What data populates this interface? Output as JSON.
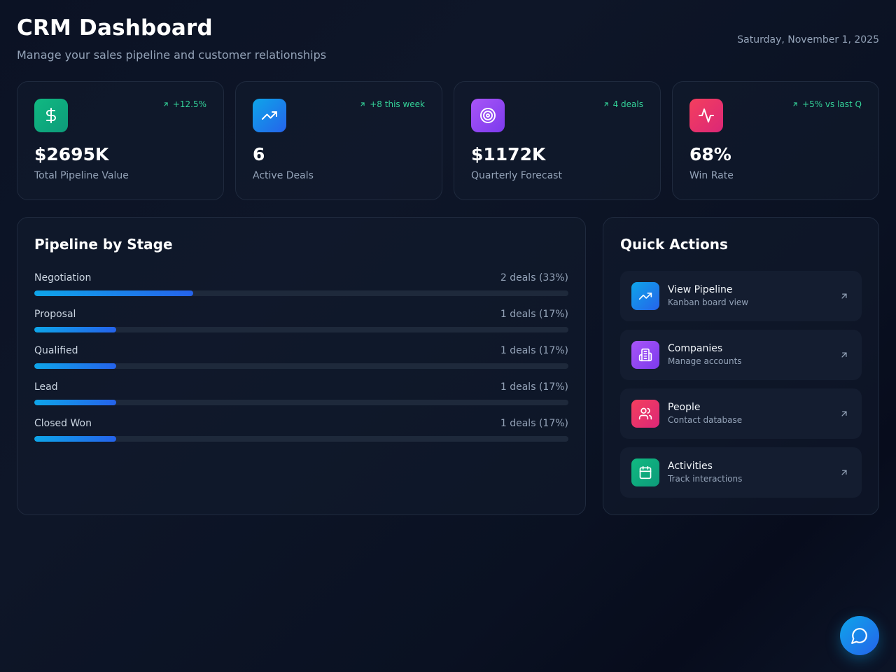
{
  "header": {
    "title": "CRM Dashboard",
    "subtitle": "Manage your sales pipeline and customer relationships",
    "date": "Saturday, November 1, 2025"
  },
  "stats": [
    {
      "icon": "dollar-icon",
      "color": "#10b981",
      "value": "$2695K",
      "label": "Total Pipeline Value",
      "trend": "+12.5%"
    },
    {
      "icon": "trending-up-icon",
      "color": "#2563eb",
      "value": "6",
      "label": "Active Deals",
      "trend": "+8 this week"
    },
    {
      "icon": "target-icon",
      "color": "#a855f7",
      "value": "$1172K",
      "label": "Quarterly Forecast",
      "trend": "4 deals"
    },
    {
      "icon": "activity-icon",
      "color": "#f43f5e",
      "value": "68%",
      "label": "Win Rate",
      "trend": "+5% vs last Q"
    }
  ],
  "pipeline": {
    "title": "Pipeline by Stage",
    "stages": [
      {
        "name": "Negotiation",
        "count": "2 deals (33%)",
        "percent": 33
      },
      {
        "name": "Proposal",
        "count": "1 deals (17%)",
        "percent": 17
      },
      {
        "name": "Qualified",
        "count": "1 deals (17%)",
        "percent": 17
      },
      {
        "name": "Lead",
        "count": "1 deals (17%)",
        "percent": 17
      },
      {
        "name": "Closed Won",
        "count": "1 deals (17%)",
        "percent": 17
      }
    ]
  },
  "quick_actions": {
    "title": "Quick Actions",
    "items": [
      {
        "icon": "trending-up-icon",
        "title": "View Pipeline",
        "subtitle": "Kanban board view"
      },
      {
        "icon": "building-icon",
        "title": "Companies",
        "subtitle": "Manage accounts"
      },
      {
        "icon": "users-icon",
        "title": "People",
        "subtitle": "Contact database"
      },
      {
        "icon": "calendar-icon",
        "title": "Activities",
        "subtitle": "Track interactions"
      }
    ]
  },
  "chat": {
    "icon": "chat-bubble-icon"
  },
  "colors": {
    "accent_green": "#34d399",
    "accent_blue": "#0ea5e9"
  }
}
